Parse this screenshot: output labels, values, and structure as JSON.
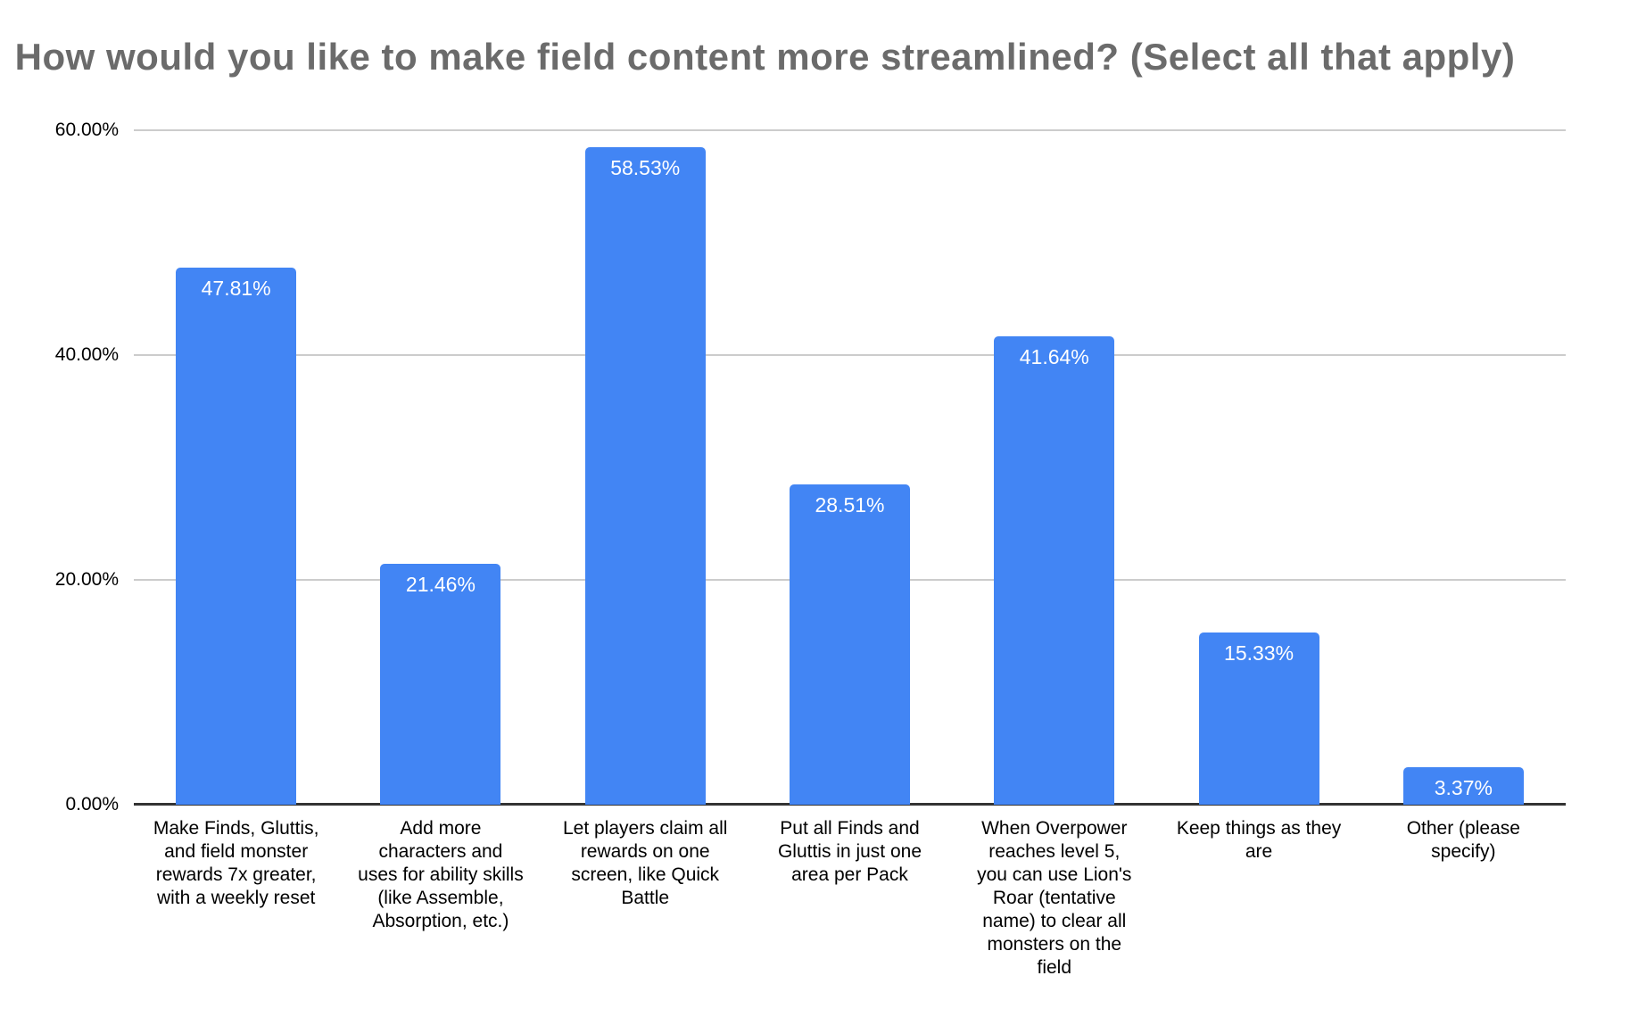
{
  "chart_data": {
    "type": "bar",
    "title": "How would you like to make field content more streamlined? (Select all that apply)",
    "categories": [
      "Make Finds, Gluttis,\nand field monster\nrewards 7x greater,\nwith a weekly reset",
      "Add more\ncharacters and\nuses for ability skills\n(like Assemble,\nAbsorption, etc.)",
      "Let players claim all\nrewards on one\nscreen, like Quick\nBattle",
      "Put all Finds and\nGluttis in just one\narea per Pack",
      "When Overpower\nreaches level 5,\nyou can use Lion's\nRoar (tentative\nname) to clear all\nmonsters on the\nfield",
      "Keep things as they\nare",
      "Other (please\nspecify)"
    ],
    "values": [
      47.81,
      21.46,
      58.53,
      28.51,
      41.64,
      15.33,
      3.37
    ],
    "value_labels": [
      "47.81%",
      "21.46%",
      "58.53%",
      "28.51%",
      "41.64%",
      "15.33%",
      "3.37%"
    ],
    "y_ticks": [
      {
        "value": 0,
        "label": "0.00%"
      },
      {
        "value": 20,
        "label": "20.00%"
      },
      {
        "value": 40,
        "label": "40.00%"
      },
      {
        "value": 60,
        "label": "60.00%"
      }
    ],
    "ylim": [
      0,
      60
    ],
    "xlabel": "",
    "ylabel": "",
    "grid": true,
    "legend": "none",
    "colors": {
      "bar": "#4285f4",
      "value_label": "#ffffff",
      "title": "#6b6b6b",
      "axis_text": "#000000",
      "gridline": "#cccccc",
      "baseline": "#333333",
      "background": "#ffffff"
    }
  }
}
